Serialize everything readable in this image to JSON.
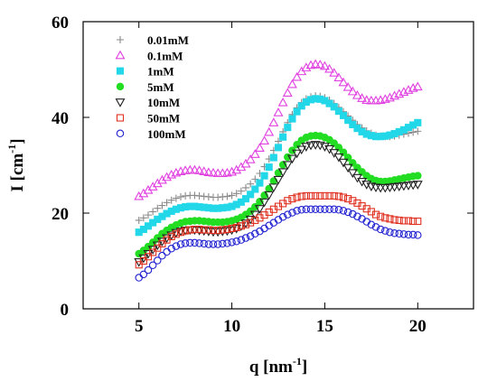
{
  "chart_data": {
    "type": "scatter",
    "xlabel": "q [nm",
    "xlabel_sup": "-1",
    "xlabel_end": "]",
    "ylabel": "I [cm",
    "ylabel_sup": "-1",
    "ylabel_end": "]",
    "xlim": [
      2,
      23
    ],
    "ylim": [
      0,
      60
    ],
    "xticks": [
      5,
      10,
      15,
      20
    ],
    "yticks": [
      0,
      20,
      40,
      60
    ],
    "xtick_labels": [
      "5",
      "10",
      "15",
      "20"
    ],
    "ytick_labels": [
      "0",
      "20",
      "40",
      "60"
    ],
    "grid": false,
    "legend_position": "top-left",
    "x": [
      5.0,
      5.25,
      5.5,
      5.75,
      6.0,
      6.25,
      6.5,
      6.75,
      7.0,
      7.25,
      7.5,
      7.75,
      8.0,
      8.25,
      8.5,
      8.75,
      9.0,
      9.25,
      9.5,
      9.75,
      10.0,
      10.25,
      10.5,
      10.75,
      11.0,
      11.25,
      11.5,
      11.75,
      12.0,
      12.25,
      12.5,
      12.75,
      13.0,
      13.25,
      13.5,
      13.75,
      14.0,
      14.25,
      14.5,
      14.75,
      15.0,
      15.25,
      15.5,
      15.75,
      16.0,
      16.25,
      16.5,
      16.75,
      17.0,
      17.25,
      17.5,
      17.75,
      18.0,
      18.25,
      18.5,
      18.75,
      19.0,
      19.25,
      19.5,
      19.75,
      20.0
    ],
    "series": [
      {
        "name": "0.01mM",
        "marker": "plus",
        "color": "#8a8a8a",
        "filled": false,
        "values": [
          18.5,
          19.0,
          19.6,
          20.3,
          21.0,
          21.6,
          22.2,
          22.7,
          23.1,
          23.4,
          23.6,
          23.7,
          23.7,
          23.6,
          23.5,
          23.4,
          23.3,
          23.3,
          23.4,
          23.5,
          23.7,
          24.1,
          24.6,
          25.3,
          26.1,
          27.1,
          28.3,
          29.7,
          31.3,
          33.1,
          35.0,
          37.0,
          38.9,
          40.6,
          42.0,
          43.1,
          43.9,
          44.3,
          44.5,
          44.4,
          44.1,
          43.6,
          42.9,
          42.1,
          41.2,
          40.3,
          39.4,
          38.5,
          37.8,
          37.2,
          36.7,
          36.3,
          36.1,
          36.0,
          36.0,
          36.1,
          36.3,
          36.5,
          36.7,
          36.9,
          37.1
        ]
      },
      {
        "name": "0.1mM",
        "marker": "triangle-up",
        "color": "#e040e0",
        "filled": false,
        "values": [
          23.5,
          24.1,
          24.8,
          25.5,
          26.2,
          26.9,
          27.5,
          28.0,
          28.4,
          28.7,
          28.9,
          29.0,
          29.0,
          28.9,
          28.7,
          28.5,
          28.4,
          28.3,
          28.3,
          28.4,
          28.6,
          29.0,
          29.6,
          30.3,
          31.2,
          32.3,
          33.6,
          35.1,
          36.9,
          38.9,
          41.0,
          43.1,
          45.1,
          46.9,
          48.4,
          49.6,
          50.4,
          50.9,
          51.1,
          51.0,
          50.7,
          50.1,
          49.3,
          48.3,
          47.3,
          46.3,
          45.4,
          44.6,
          44.0,
          43.6,
          43.5,
          43.5,
          43.6,
          43.8,
          44.1,
          44.5,
          44.9,
          45.3,
          45.7,
          46.1,
          46.4
        ]
      },
      {
        "name": "1mM",
        "marker": "square",
        "color": "#22d8e8",
        "filled": true,
        "values": [
          16.0,
          16.6,
          17.3,
          18.0,
          18.7,
          19.3,
          19.9,
          20.4,
          20.8,
          21.1,
          21.3,
          21.4,
          21.4,
          21.3,
          21.2,
          21.1,
          21.0,
          21.0,
          21.1,
          21.2,
          21.4,
          21.8,
          22.3,
          23.0,
          23.9,
          25.0,
          26.3,
          27.8,
          29.6,
          31.6,
          33.7,
          35.9,
          37.9,
          39.7,
          41.2,
          42.4,
          43.2,
          43.7,
          43.9,
          43.8,
          43.5,
          42.9,
          42.2,
          41.3,
          40.4,
          39.4,
          38.5,
          37.7,
          37.0,
          36.5,
          36.2,
          36.0,
          36.0,
          36.1,
          36.3,
          36.6,
          37.0,
          37.4,
          37.9,
          38.4,
          38.9
        ]
      },
      {
        "name": "5mM",
        "marker": "circle",
        "color": "#22dd22",
        "filled": true,
        "values": [
          11.5,
          12.2,
          13.0,
          13.9,
          14.8,
          15.7,
          16.4,
          17.0,
          17.5,
          17.9,
          18.2,
          18.3,
          18.4,
          18.4,
          18.3,
          18.2,
          18.1,
          18.1,
          18.1,
          18.2,
          18.4,
          18.7,
          19.1,
          19.7,
          20.4,
          21.3,
          22.4,
          23.7,
          25.1,
          26.7,
          28.4,
          30.1,
          31.7,
          33.1,
          34.3,
          35.2,
          35.8,
          36.1,
          36.2,
          36.1,
          35.8,
          35.3,
          34.6,
          33.7,
          32.7,
          31.6,
          30.5,
          29.5,
          28.6,
          27.8,
          27.2,
          26.8,
          26.6,
          26.6,
          26.7,
          26.9,
          27.1,
          27.3,
          27.5,
          27.7,
          27.8
        ]
      },
      {
        "name": "10mM",
        "marker": "triangle-down",
        "color": "#222222",
        "filled": false,
        "values": [
          9.8,
          10.6,
          11.5,
          12.4,
          13.3,
          14.1,
          14.8,
          15.4,
          15.9,
          16.2,
          16.4,
          16.5,
          16.5,
          16.4,
          16.3,
          16.2,
          16.1,
          16.1,
          16.2,
          16.3,
          16.5,
          16.8,
          17.3,
          17.9,
          18.7,
          19.7,
          20.9,
          22.3,
          23.8,
          25.4,
          27.0,
          28.6,
          30.1,
          31.4,
          32.5,
          33.3,
          33.9,
          34.2,
          34.3,
          34.2,
          33.9,
          33.4,
          32.6,
          31.7,
          30.6,
          29.5,
          28.4,
          27.4,
          26.6,
          26.0,
          25.6,
          25.4,
          25.3,
          25.3,
          25.4,
          25.5,
          25.6,
          25.7,
          25.8,
          25.9,
          26.0
        ]
      },
      {
        "name": "50mM",
        "marker": "square",
        "color": "#e03020",
        "filled": false,
        "values": [
          9.2,
          10.0,
          10.9,
          11.8,
          12.7,
          13.6,
          14.4,
          15.1,
          15.6,
          16.0,
          16.3,
          16.5,
          16.6,
          16.6,
          16.5,
          16.5,
          16.4,
          16.4,
          16.5,
          16.6,
          16.8,
          17.0,
          17.3,
          17.6,
          18.0,
          18.5,
          19.0,
          19.6,
          20.2,
          20.8,
          21.4,
          22.0,
          22.6,
          23.0,
          23.3,
          23.5,
          23.6,
          23.6,
          23.6,
          23.6,
          23.6,
          23.6,
          23.6,
          23.5,
          23.3,
          23.0,
          22.6,
          22.1,
          21.5,
          20.9,
          20.3,
          19.7,
          19.3,
          19.0,
          18.8,
          18.6,
          18.5,
          18.4,
          18.4,
          18.3,
          18.3
        ]
      },
      {
        "name": "100mM",
        "marker": "circle",
        "color": "#2020d0",
        "filled": false,
        "values": [
          6.5,
          7.2,
          8.1,
          9.1,
          10.1,
          11.1,
          11.9,
          12.6,
          13.1,
          13.5,
          13.7,
          13.8,
          13.8,
          13.7,
          13.6,
          13.5,
          13.5,
          13.5,
          13.6,
          13.7,
          13.9,
          14.1,
          14.4,
          14.8,
          15.2,
          15.7,
          16.2,
          16.8,
          17.4,
          18.0,
          18.6,
          19.2,
          19.7,
          20.1,
          20.5,
          20.7,
          20.8,
          20.8,
          20.8,
          20.8,
          20.8,
          20.8,
          20.8,
          20.7,
          20.5,
          20.2,
          19.8,
          19.3,
          18.8,
          18.2,
          17.6,
          17.1,
          16.6,
          16.3,
          16.0,
          15.8,
          15.7,
          15.6,
          15.5,
          15.5,
          15.4
        ]
      }
    ]
  }
}
